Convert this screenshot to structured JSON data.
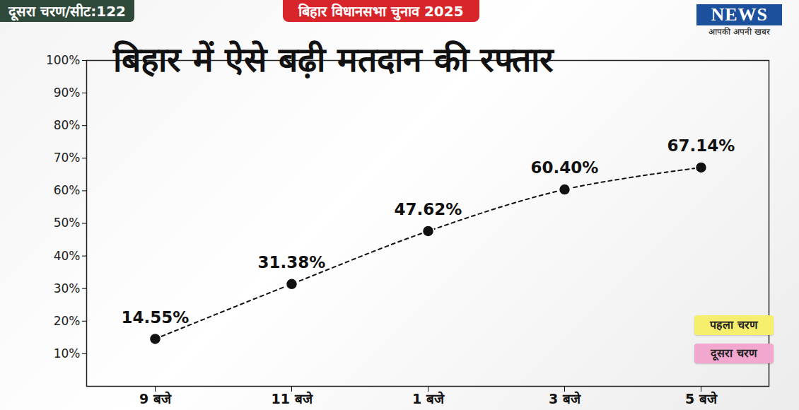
{
  "header": {
    "phase_badge": "दूसरा चरण/सीट:122",
    "banner": "बिहार विधानसभा चुनाव 2025",
    "logo": "NEWS",
    "tagline": "आपकी अपनी खबर"
  },
  "chart_data": {
    "type": "line",
    "title": "बिहार में ऐसे बढ़ी मतदान की रफ्तार",
    "categories": [
      "9 बजे",
      "11 बजे",
      "1 बजे",
      "3 बजे",
      "5 बजे"
    ],
    "values": [
      14.55,
      31.38,
      47.62,
      60.4,
      67.14
    ],
    "value_labels": [
      "14.55%",
      "31.38%",
      "47.62%",
      "60.40%",
      "67.14%"
    ],
    "color": "#111111",
    "line_style": "dashed",
    "marker": "circle",
    "data_labels": true,
    "grid": false,
    "ylim": [
      0,
      100
    ],
    "yticks": [
      {
        "value": 10,
        "label": "10%"
      },
      {
        "value": 20,
        "label": "20%"
      },
      {
        "value": 30,
        "label": "30%"
      },
      {
        "value": 40,
        "label": "40%"
      },
      {
        "value": 50,
        "label": "50%"
      },
      {
        "value": 60,
        "label": "60%"
      },
      {
        "value": 70,
        "label": "70%"
      },
      {
        "value": 80,
        "label": "80%"
      },
      {
        "value": 90,
        "label": "90%"
      },
      {
        "value": 100,
        "label": "100%"
      }
    ],
    "map_legend": [
      {
        "label": "पहला चरण",
        "color": "#f6ee6d"
      },
      {
        "label": "दूसरा चरण",
        "color": "#f2a7cf"
      }
    ]
  }
}
